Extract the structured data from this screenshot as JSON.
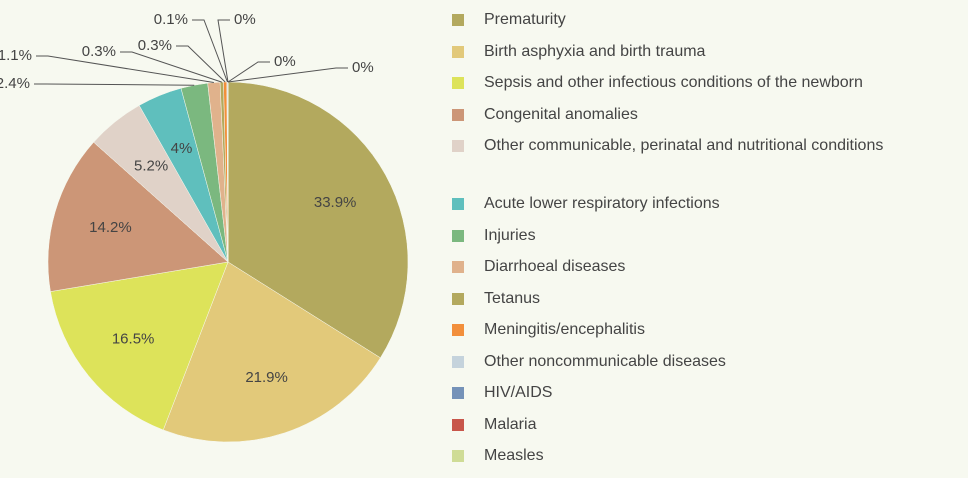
{
  "chart_data": {
    "type": "pie",
    "categories": [
      "Prematurity",
      "Birth asphyxia and birth trauma",
      "Sepsis and other infectious conditions of the newborn",
      "Congenital anomalies",
      "Other communicable, perinatal and nutritional conditions",
      "Acute lower respiratory infections",
      "Injuries",
      "Diarrhoeal diseases",
      "Tetanus",
      "Meningitis/encephalitis",
      "Other noncommunicable diseases",
      "HIV/AIDS",
      "Malaria",
      "Measles"
    ],
    "values": [
      33.9,
      21.9,
      16.5,
      14.2,
      5.2,
      4,
      2.4,
      1.1,
      0.3,
      0.3,
      0.1,
      0,
      0,
      0
    ],
    "value_labels": [
      "33.9%",
      "21.9%",
      "16.5%",
      "14.2%",
      "5.2%",
      "4%",
      "2.4%",
      "1.1%",
      "0.3%",
      "0.3%",
      "0.1%",
      "0%",
      "0%",
      "0%"
    ],
    "colors": [
      "#b3a95e",
      "#e2c97a",
      "#dde35a",
      "#cc9677",
      "#e0d2c8",
      "#5fbfbd",
      "#7bb87f",
      "#e0b28c",
      "#b3a95e",
      "#f28f3b",
      "#c5d3dc",
      "#7592b8",
      "#c8564a",
      "#cfdc96"
    ],
    "legend": "right"
  }
}
